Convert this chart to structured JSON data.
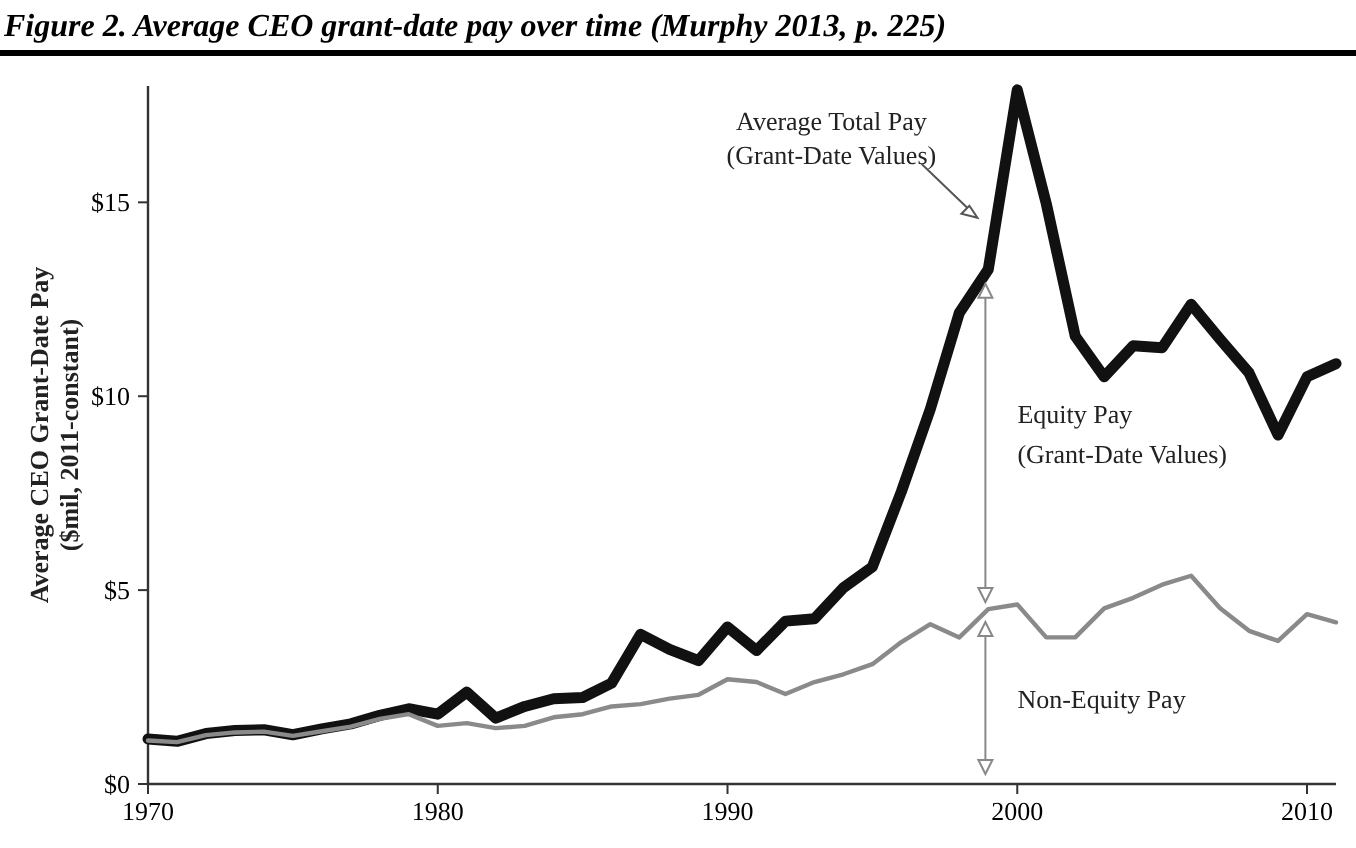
{
  "chart_data": {
    "type": "line",
    "title": "Figure 2. Average CEO grant-date pay over time (Murphy 2013, p. 225)",
    "ylabel": "Average CEO Grant-Date Pay\n($mil, 2011-constant)",
    "x": [
      1970,
      1971,
      1972,
      1973,
      1974,
      1975,
      1976,
      1977,
      1978,
      1979,
      1980,
      1981,
      1982,
      1983,
      1984,
      1985,
      1986,
      1987,
      1988,
      1989,
      1990,
      1991,
      1992,
      1993,
      1994,
      1995,
      1996,
      1997,
      1998,
      1999,
      2000,
      2001,
      2002,
      2003,
      2004,
      2005,
      2006,
      2007,
      2008,
      2009,
      2010,
      2011
    ],
    "series": [
      {
        "color": "#111111",
        "values": [
          1.16,
          1.1,
          1.3,
          1.38,
          1.4,
          1.27,
          1.42,
          1.55,
          1.77,
          1.94,
          1.8,
          2.37,
          1.7,
          2.0,
          2.2,
          2.23,
          2.6,
          3.86,
          3.47,
          3.18,
          4.05,
          3.44,
          4.2,
          4.26,
          5.06,
          5.6,
          7.54,
          9.67,
          12.15,
          13.27,
          17.9,
          14.97,
          11.55,
          10.5,
          11.3,
          11.25,
          12.37,
          11.47,
          10.6,
          9.0,
          10.5,
          10.84
        ]
      },
      {
        "color": "#8a8a8a",
        "values": [
          1.12,
          1.08,
          1.26,
          1.33,
          1.35,
          1.24,
          1.36,
          1.48,
          1.68,
          1.8,
          1.5,
          1.57,
          1.44,
          1.5,
          1.72,
          1.8,
          2.0,
          2.06,
          2.2,
          2.3,
          2.7,
          2.63,
          2.32,
          2.63,
          2.83,
          3.09,
          3.66,
          4.12,
          3.78,
          4.51,
          4.63,
          3.78,
          3.78,
          4.53,
          4.8,
          5.14,
          5.37,
          4.53,
          3.95,
          3.69,
          4.38,
          4.17
        ]
      }
    ],
    "xlim": [
      1970,
      2011
    ],
    "xticks": [
      1970,
      1980,
      1990,
      2000,
      2010
    ],
    "ylim": [
      0,
      18
    ],
    "yticks": [
      {
        "value": 0,
        "label": "$0"
      },
      {
        "value": 5,
        "label": "$5"
      },
      {
        "value": 10,
        "label": "$10"
      },
      {
        "value": 15,
        "label": "$15"
      }
    ],
    "grid": false,
    "annotations": [
      "Average Total Pay\n(Grant-Date Values)",
      "Equity Pay\n(Grant-Date Values)",
      "Non-Equity Pay"
    ]
  }
}
